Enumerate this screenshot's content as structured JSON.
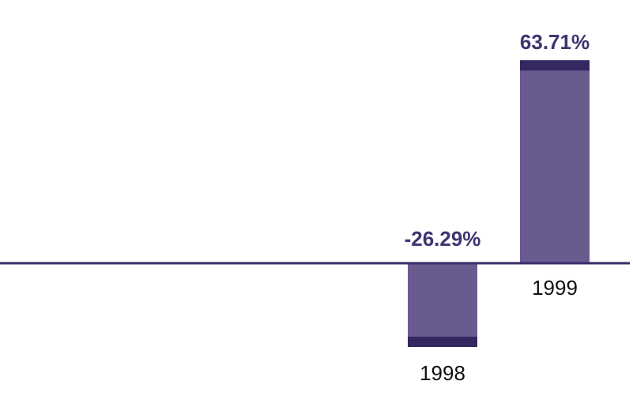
{
  "chart_data": {
    "type": "bar",
    "categories": [
      "1998",
      "1999"
    ],
    "values": [
      -26.29,
      63.71
    ],
    "value_labels": [
      "-26.29%",
      "63.71%"
    ],
    "title": "",
    "xlabel": "",
    "ylabel": "",
    "ylim": [
      -36,
      70
    ],
    "grid": false,
    "legend": "none",
    "colors": {
      "bar_fill": "#6a5b8f",
      "bar_cap": "#35275f",
      "axis": "#3a2c6b",
      "value_label": "#3f3470",
      "category_label": "#111111"
    }
  }
}
